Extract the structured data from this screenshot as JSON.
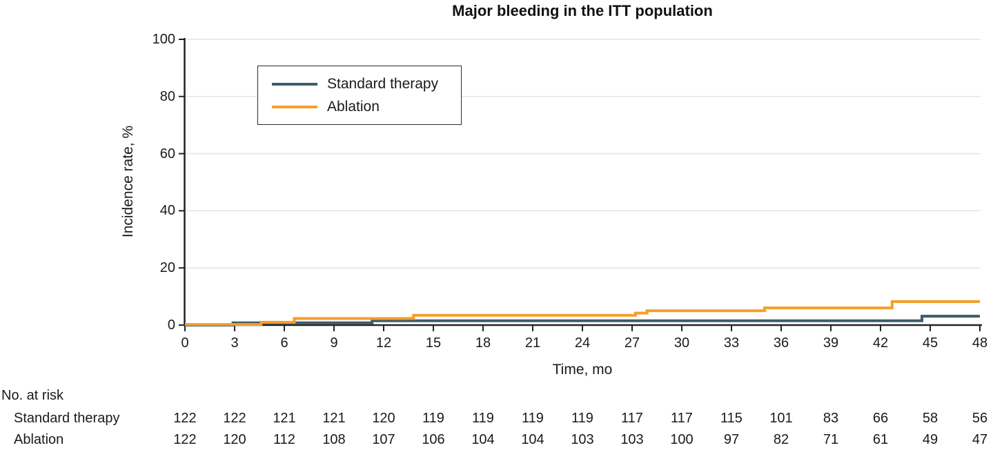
{
  "title": "Major bleeding in the ITT population",
  "colors": {
    "standard": "#3d5c6a",
    "ablation": "#f59e29",
    "axis": "#222222",
    "grid": "#e4e4e4",
    "text": "#1a1a1a"
  },
  "chart_data": {
    "type": "line",
    "subtype": "step",
    "title": "Major bleeding in the ITT population",
    "xlabel": "Time, mo",
    "ylabel": "Incidence rate, %",
    "xlim": [
      0,
      48
    ],
    "ylim": [
      0,
      100
    ],
    "x_ticks": [
      0,
      3,
      6,
      9,
      12,
      15,
      18,
      21,
      24,
      27,
      30,
      33,
      36,
      39,
      42,
      45,
      48
    ],
    "y_ticks": [
      0,
      20,
      40,
      60,
      80,
      100
    ],
    "grid": "horizontal",
    "legend_position": "upper-left-inside",
    "series": [
      {
        "name": "Standard therapy",
        "color": "#3d5c6a",
        "steps": [
          {
            "t": 0,
            "v": 0
          },
          {
            "t": 2.9,
            "v": 0.8
          },
          {
            "t": 11.3,
            "v": 1.5
          },
          {
            "t": 44.5,
            "v": 3.1
          }
        ],
        "end_t": 48,
        "end_value": 3.1
      },
      {
        "name": "Ablation",
        "color": "#f59e29",
        "steps": [
          {
            "t": 0,
            "v": 0.2
          },
          {
            "t": 4.6,
            "v": 1.0
          },
          {
            "t": 6.6,
            "v": 2.3
          },
          {
            "t": 13.8,
            "v": 3.4
          },
          {
            "t": 27.2,
            "v": 4.2
          },
          {
            "t": 27.9,
            "v": 5.0
          },
          {
            "t": 35.0,
            "v": 6.0
          },
          {
            "t": 42.7,
            "v": 8.2
          }
        ],
        "end_t": 48,
        "end_value": 8.2
      }
    ]
  },
  "at_risk": {
    "header": "No. at risk",
    "times": [
      0,
      3,
      6,
      9,
      12,
      15,
      18,
      21,
      24,
      27,
      30,
      33,
      36,
      39,
      42,
      45,
      48
    ],
    "rows": [
      {
        "label": "Standard therapy",
        "values": [
          122,
          122,
          121,
          121,
          120,
          119,
          119,
          119,
          119,
          117,
          117,
          115,
          101,
          83,
          66,
          58,
          56
        ]
      },
      {
        "label": "Ablation",
        "values": [
          122,
          120,
          112,
          108,
          107,
          106,
          104,
          104,
          103,
          103,
          100,
          97,
          82,
          71,
          61,
          49,
          47
        ]
      }
    ]
  }
}
